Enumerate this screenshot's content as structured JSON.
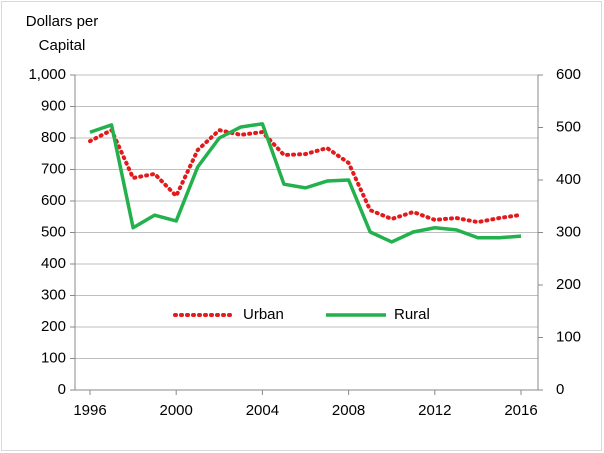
{
  "chart_data": {
    "type": "line",
    "y_label": "Dollars per Capital",
    "x": [
      1996,
      1997,
      1998,
      1999,
      2000,
      2001,
      2002,
      2003,
      2004,
      2005,
      2006,
      2007,
      2008,
      2009,
      2010,
      2011,
      2012,
      2013,
      2014,
      2015,
      2016
    ],
    "series": [
      {
        "name": "Urban",
        "color": "#e31a1c",
        "style": "dotted",
        "values": [
          790,
          825,
          673,
          686,
          616,
          762,
          825,
          810,
          819,
          746,
          749,
          768,
          721,
          571,
          543,
          565,
          540,
          546,
          533,
          546,
          556
        ]
      },
      {
        "name": "Rural",
        "color": "#22b14c",
        "style": "solid",
        "axis": "y2",
        "values": [
          491,
          505,
          309,
          333,
          322,
          425,
          480,
          501,
          507,
          392,
          385,
          398,
          400,
          301,
          282,
          301,
          309,
          305,
          290,
          290,
          293
        ]
      }
    ],
    "xlim": [
      1996,
      2016
    ],
    "xticks": [
      1996,
      2000,
      2004,
      2008,
      2012,
      2016
    ],
    "ylim": [
      0,
      1000
    ],
    "yticks": [
      0,
      100,
      200,
      300,
      400,
      500,
      600,
      700,
      800,
      900,
      {
        "value": 1000,
        "label": "1,000"
      }
    ],
    "y2lim": [
      0,
      600
    ],
    "y2ticks": [
      0,
      100,
      200,
      300,
      400,
      500,
      600
    ],
    "grid": true,
    "legend": "center"
  }
}
